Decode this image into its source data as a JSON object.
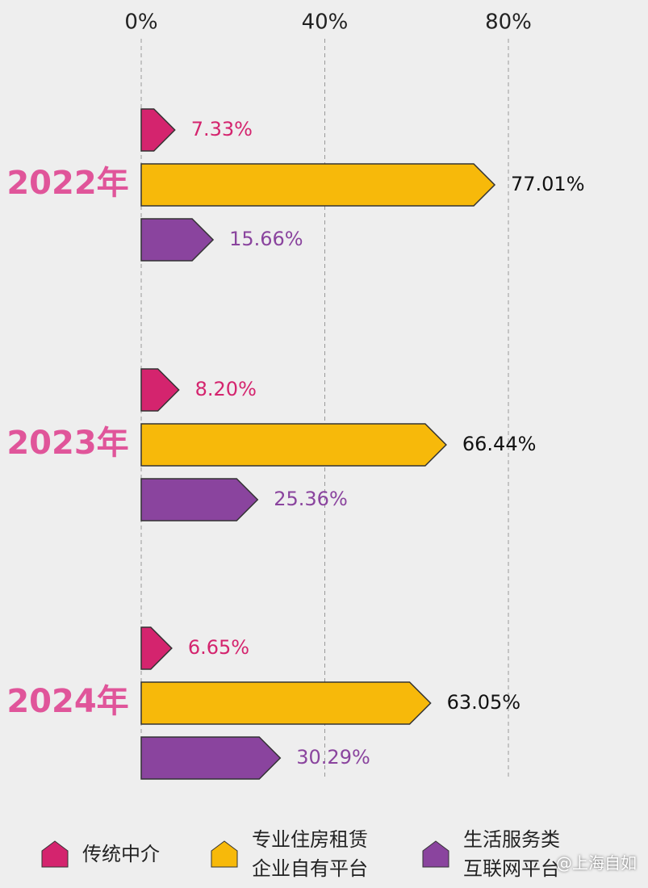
{
  "chart_data": {
    "type": "bar",
    "orientation": "horizontal",
    "categories": [
      "2022年",
      "2023年",
      "2024年"
    ],
    "category_color": "#e0559a",
    "series": [
      {
        "name": "传统中介",
        "color": "#d4246e",
        "label_color": "#d4246e",
        "values": [
          7.33,
          8.2,
          6.65
        ],
        "value_labels": [
          "7.33%",
          "8.20%",
          "6.65%"
        ]
      },
      {
        "name": "专业住房租赁\n企业自有平台",
        "color": "#f7b90a",
        "label_color": "#111111",
        "values": [
          77.01,
          66.44,
          63.05
        ],
        "value_labels": [
          "77.01%",
          "66.44%",
          "63.05%"
        ]
      },
      {
        "name": "生活服务类\n互联网平台",
        "color": "#8a449e",
        "label_color": "#8a449e",
        "values": [
          15.66,
          25.36,
          30.29
        ],
        "value_labels": [
          "15.66%",
          "25.36%",
          "30.29%"
        ]
      }
    ],
    "xlim": [
      0,
      80
    ],
    "xticks": [
      {
        "value": 0,
        "label": "0%"
      },
      {
        "value": 40,
        "label": "40%"
      },
      {
        "value": 80,
        "label": "80%"
      }
    ],
    "grid": true,
    "watermark": "@上海自如"
  }
}
